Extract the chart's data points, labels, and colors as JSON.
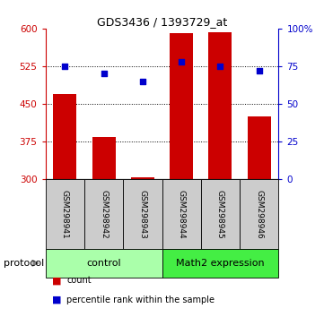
{
  "title": "GDS3436 / 1393729_at",
  "samples": [
    "GSM298941",
    "GSM298942",
    "GSM298943",
    "GSM298944",
    "GSM298945",
    "GSM298946"
  ],
  "bar_values": [
    470,
    383,
    303,
    590,
    592,
    425
  ],
  "bar_base": 300,
  "percentile_values": [
    75,
    70,
    65,
    78,
    75,
    72
  ],
  "bar_color": "#cc0000",
  "dot_color": "#0000cc",
  "ylim_left": [
    300,
    600
  ],
  "yticks_left": [
    300,
    375,
    450,
    525,
    600
  ],
  "ylim_right": [
    0,
    100
  ],
  "yticks_right": [
    0,
    25,
    50,
    75,
    100
  ],
  "ytick_labels_right": [
    "0",
    "25",
    "50",
    "75",
    "100%"
  ],
  "hlines": [
    375,
    450,
    525
  ],
  "groups": [
    {
      "label": "control",
      "indices": [
        0,
        1,
        2
      ],
      "color": "#aaffaa"
    },
    {
      "label": "Math2 expression",
      "indices": [
        3,
        4,
        5
      ],
      "color": "#44ee44"
    }
  ],
  "protocol_label": "protocol",
  "legend_items": [
    {
      "label": "count",
      "color": "#cc0000"
    },
    {
      "label": "percentile rank within the sample",
      "color": "#0000cc"
    }
  ],
  "sample_box_color": "#cccccc",
  "bar_width": 0.6
}
